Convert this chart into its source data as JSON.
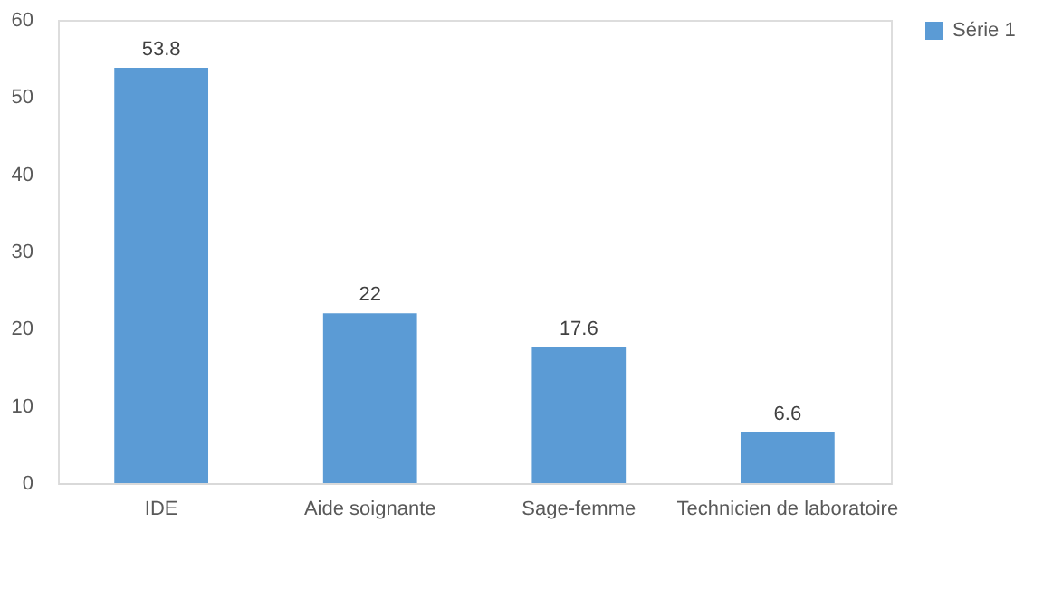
{
  "chart_data": {
    "type": "bar",
    "categories": [
      "IDE",
      "Aide soignante",
      "Sage-femme",
      "Technicien de laboratoire"
    ],
    "series": [
      {
        "name": "Série 1",
        "color": "#5b9bd5",
        "values": [
          53.8,
          22,
          17.6,
          6.6
        ]
      }
    ],
    "ylim": [
      0,
      60
    ],
    "yticks": [
      0,
      10,
      20,
      30,
      40,
      50,
      60
    ],
    "data_labels": true,
    "grid": false,
    "legend": "right"
  }
}
